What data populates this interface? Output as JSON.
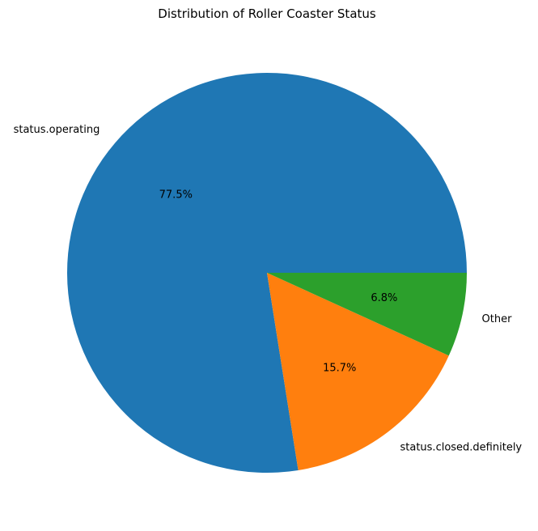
{
  "chart_data": {
    "type": "pie",
    "title": "Distribution of Roller Coaster Status",
    "start_angle_deg": 0,
    "direction": "counterclockwise",
    "slices": [
      {
        "label": "status.operating",
        "value": 77.5,
        "pct_label": "77.5%",
        "color": "#1f77b4"
      },
      {
        "label": "status.closed.definitely",
        "value": 15.7,
        "pct_label": "15.7%",
        "color": "#ff7f0e"
      },
      {
        "label": "Other",
        "value": 6.8,
        "pct_label": "6.8%",
        "color": "#2ca02c"
      }
    ]
  }
}
